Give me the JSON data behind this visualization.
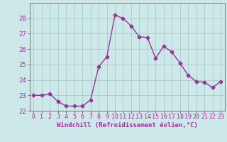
{
  "x": [
    0,
    1,
    2,
    3,
    4,
    5,
    6,
    7,
    8,
    9,
    10,
    11,
    12,
    13,
    14,
    15,
    16,
    17,
    18,
    19,
    20,
    21,
    22,
    23
  ],
  "y": [
    23.0,
    23.0,
    23.1,
    22.6,
    22.3,
    22.3,
    22.3,
    22.7,
    24.85,
    25.5,
    28.2,
    28.0,
    27.5,
    26.8,
    26.75,
    25.4,
    26.2,
    25.8,
    25.1,
    24.3,
    23.9,
    23.85,
    23.5,
    23.9
  ],
  "line_color": "#993399",
  "marker": "D",
  "marker_size": 2.5,
  "linewidth": 1.0,
  "bg_color": "#cce8e8",
  "grid_color": "#aacccc",
  "xlabel": "Windchill (Refroidissement éolien,°C)",
  "xlabel_color": "#993399",
  "tick_color": "#993399",
  "axis_color": "#666666",
  "ylim": [
    22,
    29
  ],
  "yticks": [
    22,
    23,
    24,
    25,
    26,
    27,
    28
  ],
  "xlim": [
    -0.5,
    23.5
  ],
  "xticks": [
    0,
    1,
    2,
    3,
    4,
    5,
    6,
    7,
    8,
    9,
    10,
    11,
    12,
    13,
    14,
    15,
    16,
    17,
    18,
    19,
    20,
    21,
    22,
    23
  ],
  "xlabel_fontsize": 6.5,
  "tick_fontsize": 6.0,
  "ytick_fontsize": 6.5
}
